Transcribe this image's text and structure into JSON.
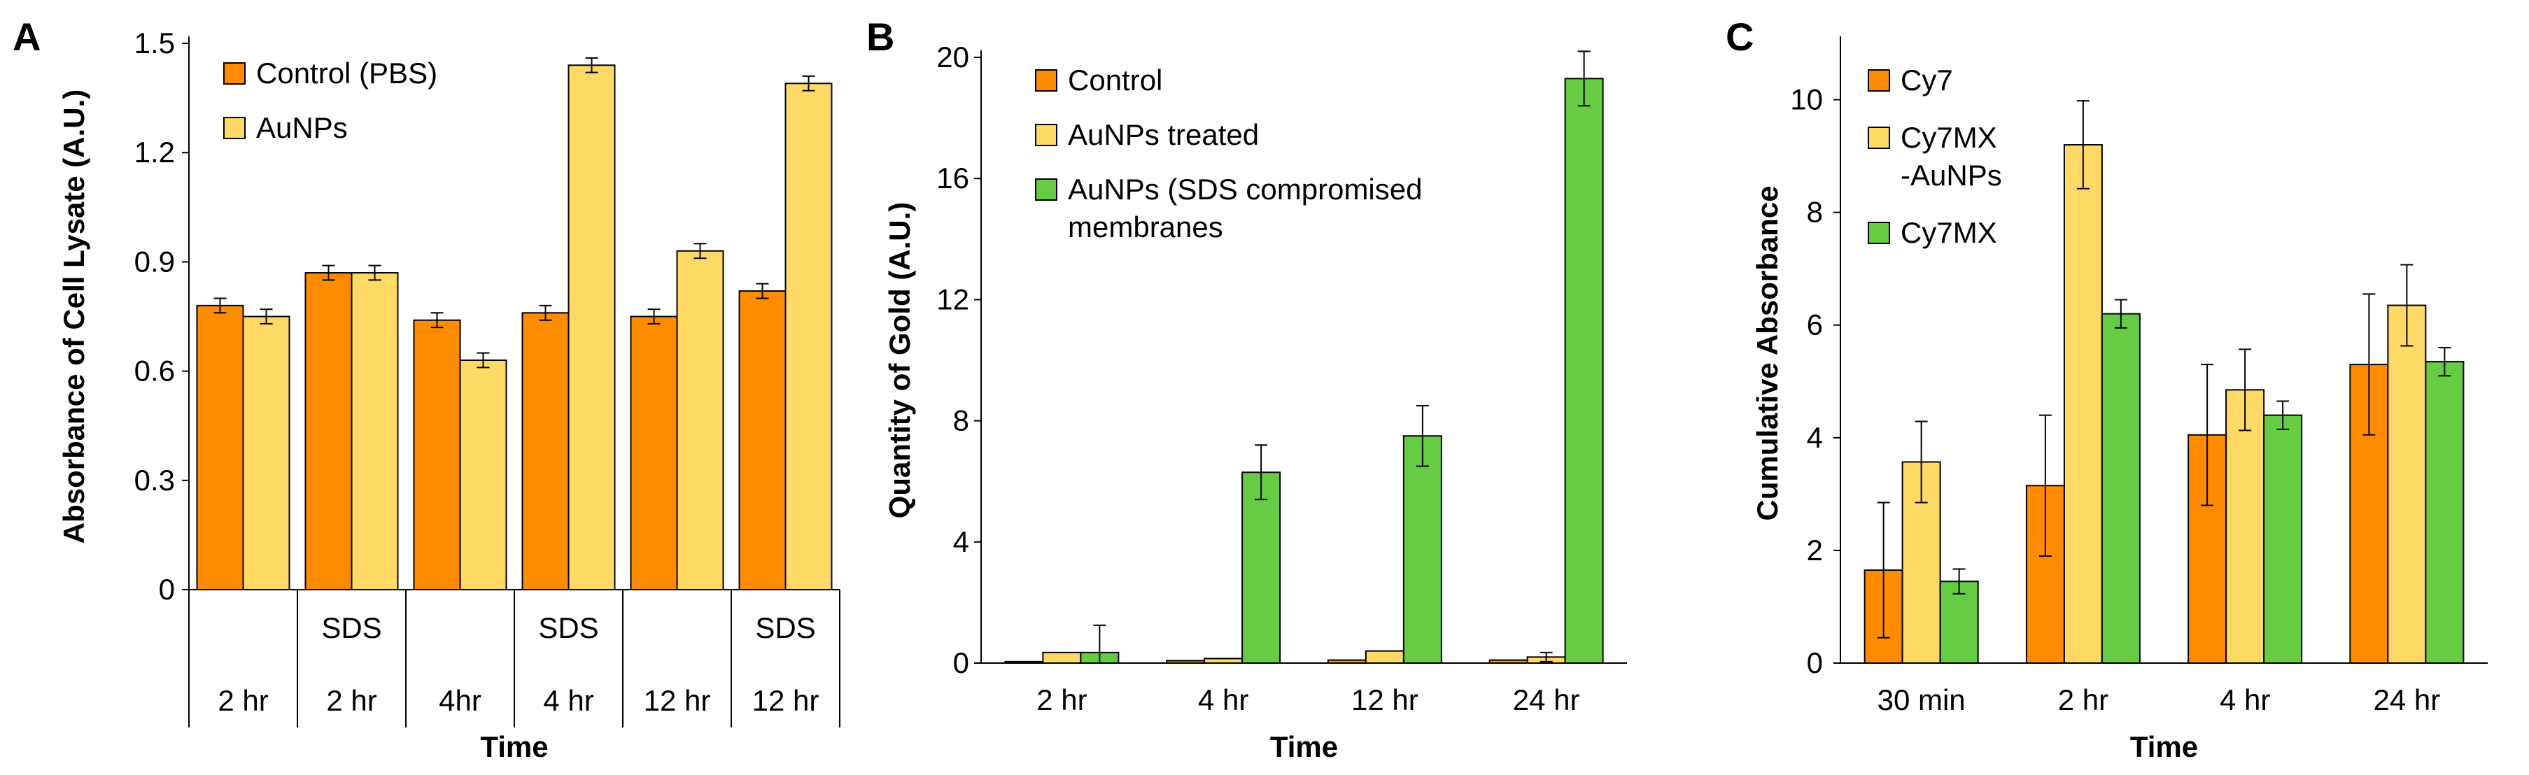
{
  "colors": {
    "orange": "#ff8c00",
    "yellow": "#ffd966",
    "green": "#66cc44",
    "outline": "#000000"
  },
  "chart_data": [
    {
      "panel": "A",
      "type": "bar",
      "ylabel": "Absorbance of Cell Lysate (A.U.)",
      "xlabel": "Time",
      "ylim": [
        0,
        1.5
      ],
      "yticks": [
        "0",
        "0.3",
        "0.6",
        "0.9",
        "1.2",
        "1.5"
      ],
      "categories": [
        "2 hr",
        "2 hr",
        "4hr",
        "4 hr",
        "12 hr",
        "12 hr"
      ],
      "category_tags": [
        "",
        "SDS",
        "",
        "SDS",
        "",
        "SDS"
      ],
      "legend_position": "top-left",
      "series": [
        {
          "name": "Control (PBS)",
          "color": "#ff8c00",
          "values": [
            0.78,
            0.87,
            0.74,
            0.76,
            0.75,
            0.82
          ],
          "errors": [
            0.02,
            0.02,
            0.02,
            0.02,
            0.02,
            0.02
          ]
        },
        {
          "name": "AuNPs",
          "color": "#ffd966",
          "values": [
            0.75,
            0.87,
            0.63,
            1.44,
            0.93,
            1.39
          ],
          "errors": [
            0.02,
            0.02,
            0.02,
            0.02,
            0.02,
            0.02
          ]
        }
      ]
    },
    {
      "panel": "B",
      "type": "bar",
      "ylabel": "Quantity of Gold (A.U.)",
      "xlabel": "Time",
      "ylim": [
        0,
        20
      ],
      "yticks": [
        "0",
        "4",
        "8",
        "12",
        "16",
        "20"
      ],
      "categories": [
        "2 hr",
        "4 hr",
        "12 hr",
        "24 hr"
      ],
      "legend_position": "top-left",
      "series": [
        {
          "name": "Control",
          "color": "#ff8c00",
          "values": [
            0.05,
            0.08,
            0.1,
            0.1
          ],
          "errors": [
            0,
            0,
            0,
            0
          ]
        },
        {
          "name": "AuNPs treated",
          "color": "#ffd966",
          "values": [
            0.35,
            0.15,
            0.4,
            0.2
          ],
          "errors": [
            0,
            0,
            0,
            0.15
          ]
        },
        {
          "name": "AuNPs (SDS compromised membranes",
          "color": "#66cc44",
          "values": [
            0.35,
            6.3,
            7.5,
            19.3
          ],
          "errors": [
            0.9,
            0.9,
            1.0,
            0.9
          ]
        }
      ]
    },
    {
      "panel": "C",
      "type": "bar",
      "ylabel": "Cumulative Absorbance",
      "xlabel": "Time",
      "ylim": [
        0,
        11
      ],
      "yticks": [
        "0",
        "2",
        "4",
        "6",
        "8",
        "10"
      ],
      "categories": [
        "30 min",
        "2 hr",
        "4 hr",
        "24 hr"
      ],
      "legend_position": "top-left",
      "series": [
        {
          "name": "Cy7",
          "color": "#ff8c00",
          "values": [
            1.65,
            3.15,
            4.05,
            5.3
          ],
          "errors": [
            1.2,
            1.25,
            1.25,
            1.25
          ]
        },
        {
          "name": "Cy7MX -AuNPs",
          "color": "#ffd966",
          "values": [
            3.57,
            9.2,
            4.85,
            6.35
          ],
          "errors": [
            0.72,
            0.78,
            0.72,
            0.72
          ]
        },
        {
          "name": "Cy7MX",
          "color": "#66cc44",
          "values": [
            1.45,
            6.2,
            4.4,
            5.35
          ],
          "errors": [
            0.22,
            0.25,
            0.25,
            0.25
          ]
        }
      ]
    }
  ]
}
